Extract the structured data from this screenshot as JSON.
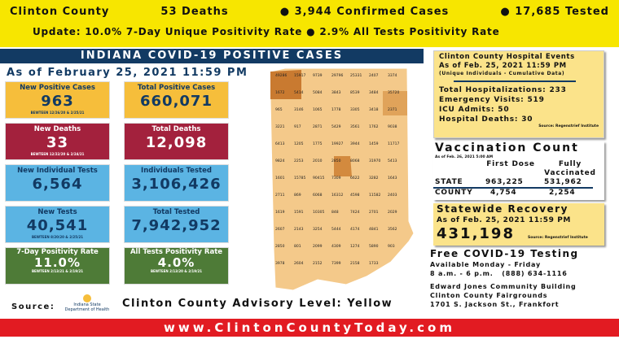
{
  "header": {
    "county": "Clinton County",
    "deaths": "53 Deaths",
    "confirmed": "● 3,944 Confirmed Cases",
    "tested": "● 17,685 Tested",
    "update": "Update: 10.0% 7-Day Unique Positivity Rate ● 2.9% All Tests Positivity Rate"
  },
  "banner": "INDIANA COVID-19 POSITIVE CASES",
  "as_of": "As of February 25, 2021 11:59 PM",
  "cards": [
    {
      "title": "New Positive Cases",
      "value": "963",
      "sub": "BEWTEEN 12/26/20 & 2/25/21"
    },
    {
      "title": "Total Positive Cases",
      "value": "660,071"
    },
    {
      "title": "New Deaths",
      "value": "33",
      "sub": "BEWTEEN 12/22/20 & 2/24/21"
    },
    {
      "title": "Total Deaths",
      "value": "12,098"
    },
    {
      "title": "New Individual Tests",
      "value": "6,564"
    },
    {
      "title": "Individuals Tested",
      "value": "3,106,426"
    },
    {
      "title": "New Tests",
      "value": "40,541",
      "sub": "BEWTEEN 8/20/20 & 2/25/21"
    },
    {
      "title": "Total Tested",
      "value": "7,942,952"
    },
    {
      "title": "7-Day Positivity Rate",
      "value": "11.0%",
      "sub": "BEWTEEN 2/13/21 & 2/19/21"
    },
    {
      "title": "All Tests Positivity Rate",
      "value": "4.0%",
      "sub": "BEWTEEN 2/13/20 & 2/19/21"
    }
  ],
  "map_labels": [
    "49286",
    "15917",
    "9739",
    "29796",
    "25331",
    "2407",
    "3374",
    "1672",
    "5414",
    "5084",
    "3843",
    "8539",
    "3484",
    "35720",
    "965",
    "3146",
    "1065",
    "1778",
    "3305",
    "3418",
    "2371",
    "3221",
    "917",
    "2871",
    "5429",
    "3561",
    "1762",
    "9038",
    "6413",
    "1205",
    "1775",
    "19927",
    "3944",
    "1459",
    "11717",
    "9824",
    "2253",
    "2010",
    "2850",
    "8068",
    "31970",
    "5413",
    "1601",
    "15785",
    "90415",
    "7309",
    "6622",
    "3282",
    "1643",
    "2711",
    "869",
    "6068",
    "16312",
    "4598",
    "11582",
    "2403",
    "1619",
    "1591",
    "10305",
    "848",
    "7424",
    "2701",
    "2029",
    "2607",
    "2143",
    "3254",
    "5444",
    "4174",
    "4841",
    "3562",
    "2850",
    "801",
    "2099",
    "4309",
    "1274",
    "5890",
    "903",
    "3978",
    "2604",
    "2152",
    "7399",
    "2158",
    "1733"
  ],
  "hospital": {
    "title": "Clinton County Hospital Events",
    "as_of": "As of Feb. 25, 2021 11:59 PM",
    "note": "(Unique Individuals - Cumulative Data)",
    "lines": [
      "Total Hospitalizations: 233",
      "Emergency Visits: 519",
      "ICU Admits: 50",
      "Hospital Deaths: 30"
    ],
    "source": "Source: Regenstrief Institute"
  },
  "vaccination": {
    "title": "Vaccination Count",
    "as_of": "As of Feb. 26, 2021 5:00 AM",
    "col1": "First Dose",
    "col2": "Fully Vaccinated",
    "state_label": "STATE",
    "state_first": "963,225",
    "state_full": "531,962",
    "county_label": "COUNTY",
    "county_first": "4,754",
    "county_full": "2,254"
  },
  "recovery": {
    "title": "Statewide Recovery",
    "as_of": "As of Feb. 25, 2021 11:59 PM",
    "value": "431,198",
    "source": "Source: Regenstrief Institute"
  },
  "testing": {
    "title": "Free COVID-19 Testing",
    "lines": [
      "Available Monday - Friday",
      "8 a.m. - 6 p.m.   (888) 634-1116",
      "",
      "Edward Jones Community Building",
      "Clinton County Fairgrounds",
      "1701 S. Jackson St., Frankfort"
    ]
  },
  "source_label": "Source:",
  "isdh_logo": "Indiana State Department of Health",
  "advisory": "Clinton County Advisory Level: Yellow",
  "footer": "www.ClintonCountyToday.com"
}
